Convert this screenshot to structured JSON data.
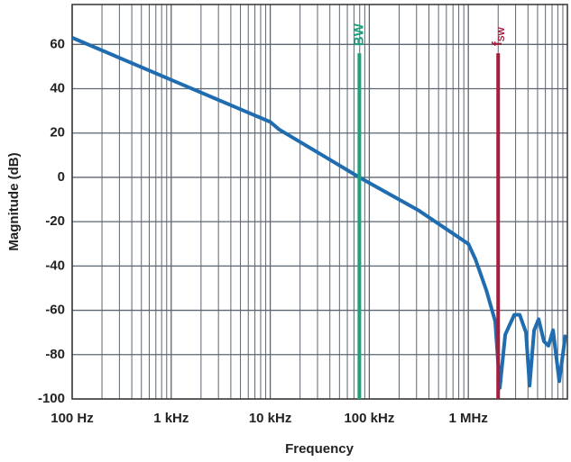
{
  "chart_data": {
    "type": "line",
    "x_label": "Frequency",
    "y_label": "Magnitude (dB)",
    "x_log": true,
    "grid": true,
    "xlim": [
      100,
      10000000
    ],
    "ylim": [
      -100,
      78
    ],
    "xticks": [
      {
        "value": 100,
        "label": "100 Hz"
      },
      {
        "value": 1000,
        "label": "1 kHz"
      },
      {
        "value": 10000,
        "label": "10 kHz"
      },
      {
        "value": 100000,
        "label": "100 kHz"
      },
      {
        "value": 1000000,
        "label": "1 MHz"
      }
    ],
    "x_minor_ticks": [
      200,
      300,
      400,
      500,
      600,
      700,
      800,
      900,
      2000,
      3000,
      4000,
      5000,
      6000,
      7000,
      8000,
      9000,
      20000,
      30000,
      40000,
      50000,
      60000,
      70000,
      80000,
      90000,
      200000,
      300000,
      400000,
      500000,
      600000,
      700000,
      800000,
      900000,
      2000000,
      3000000,
      4000000,
      5000000,
      6000000,
      7000000,
      8000000,
      9000000
    ],
    "yticks": [
      -100,
      -80,
      -60,
      -40,
      -20,
      0,
      20,
      40,
      60
    ],
    "series": [
      {
        "color": "#1f6db0",
        "x": [
          100,
          1000,
          10000,
          12300,
          79400,
          100000,
          316000,
          1000000,
          1180000,
          1520000,
          1870000,
          2080000,
          2360000,
          2910000,
          3300000,
          3820000,
          4150000,
          4610000,
          5120000,
          5800000,
          6440000,
          7160000,
          8280000,
          9560000
        ],
        "values": [
          63,
          44,
          25,
          21.6,
          0,
          -2.5,
          -15,
          -30,
          -37,
          -51,
          -65,
          -95,
          -71,
          -62,
          -62,
          -70,
          -94,
          -69,
          -64,
          -74,
          -76,
          -69,
          -92,
          -71
        ]
      }
    ],
    "markers": [
      {
        "label": "BW",
        "x": 79400,
        "top": 56,
        "color": "#1aa37a"
      },
      {
        "label": "f",
        "sub": "SW",
        "x": 2000000,
        "top": 56,
        "color": "#a51c3c"
      }
    ]
  }
}
